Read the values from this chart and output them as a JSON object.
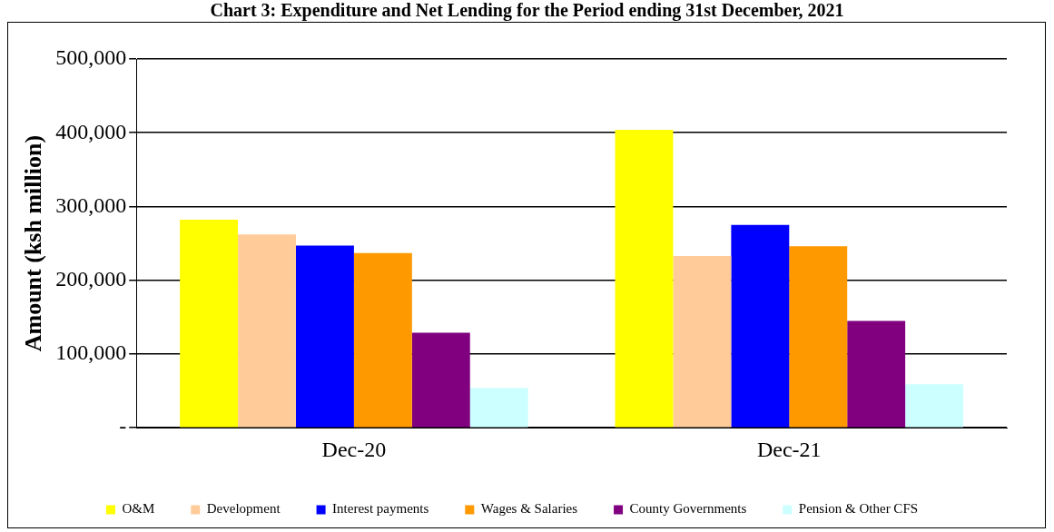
{
  "chart_data": {
    "type": "bar",
    "title": "Chart 3: Expenditure and Net Lending for the Period ending 31st December, 2021",
    "ylabel": "Amount (ksh million)",
    "categories": [
      "Dec-20",
      "Dec-21"
    ],
    "series": [
      {
        "name": "O&M",
        "color": "#ffff00",
        "values": [
          282000,
          404000
        ]
      },
      {
        "name": "Development",
        "color": "#ffcc99",
        "values": [
          262000,
          233000
        ]
      },
      {
        "name": "Interest payments",
        "color": "#0000ff",
        "values": [
          247000,
          275000
        ]
      },
      {
        "name": "Wages & Salaries",
        "color": "#ff9900",
        "values": [
          237000,
          246000
        ]
      },
      {
        "name": "County Governments",
        "color": "#800080",
        "values": [
          129000,
          145000
        ]
      },
      {
        "name": "Pension & Other CFS",
        "color": "#ccffff",
        "values": [
          54000,
          59000
        ]
      }
    ],
    "ylim": [
      0,
      500000
    ],
    "yticks": [
      {
        "value": 0,
        "label": "-"
      },
      {
        "value": 100000,
        "label": "100,000"
      },
      {
        "value": 200000,
        "label": "200,000"
      },
      {
        "value": 300000,
        "label": "300,000"
      },
      {
        "value": 400000,
        "label": "400,000"
      },
      {
        "value": 500000,
        "label": "500,000"
      }
    ],
    "grid": "y",
    "legend": "bottom"
  }
}
